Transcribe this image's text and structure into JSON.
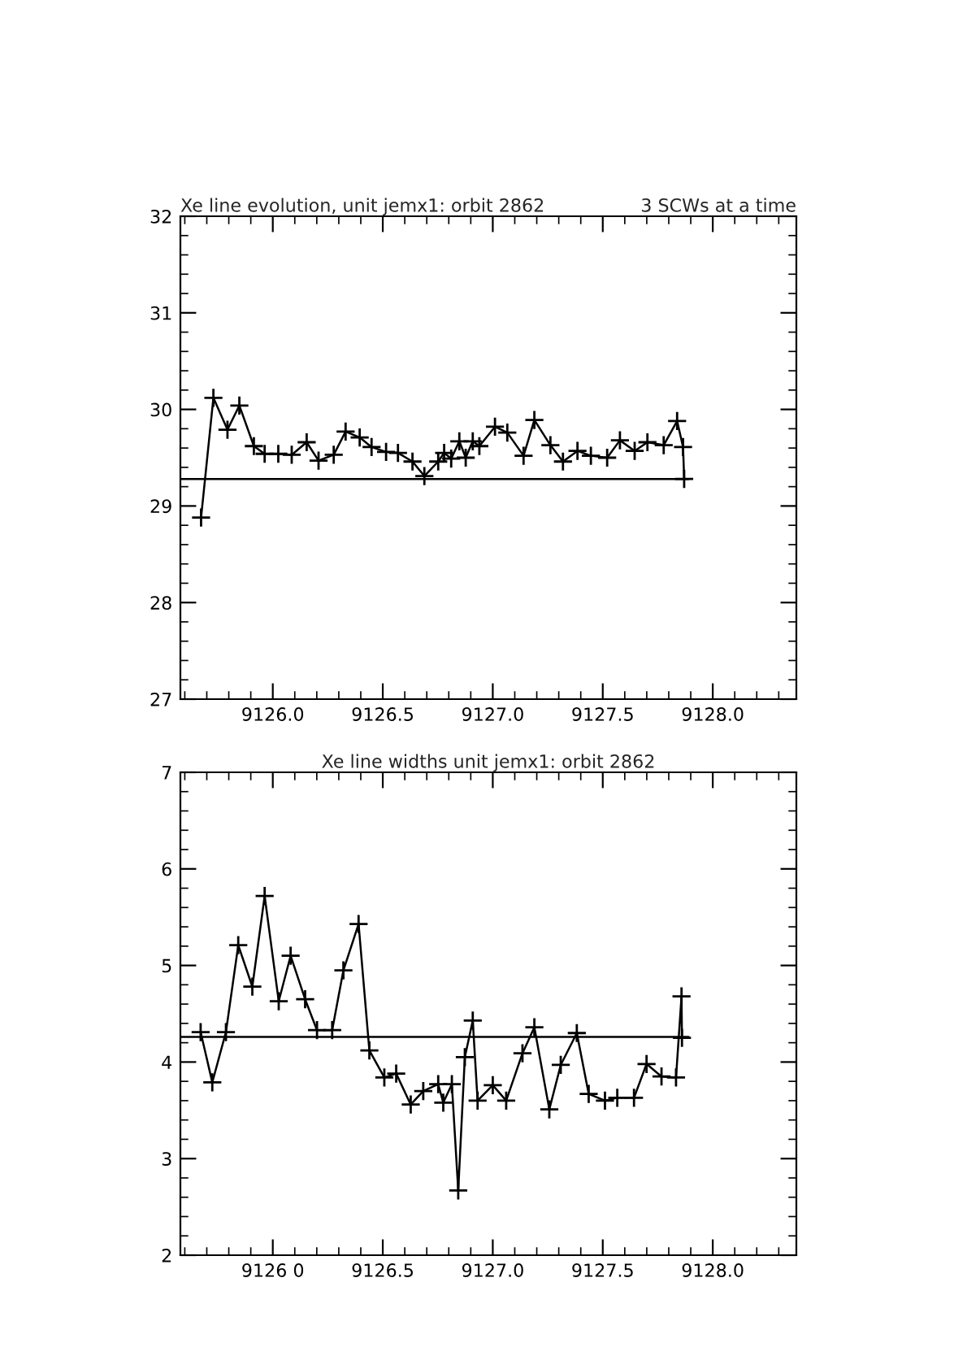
{
  "chart_data": [
    {
      "type": "line",
      "title": "Xe line evolution, unit jemx1: orbit 2862",
      "annotations": [
        "3 SCWs at a time"
      ],
      "xlim": [
        9125.58,
        9128.38
      ],
      "xticks": [
        {
          "value": 9126.0,
          "label": "9126.0"
        },
        {
          "value": 9126.5,
          "label": "9126.5"
        },
        {
          "value": 9127.0,
          "label": "9127.0"
        },
        {
          "value": 9127.5,
          "label": "9127.5"
        },
        {
          "value": 9128.0,
          "label": "9128.0"
        }
      ],
      "ylim": [
        27,
        32
      ],
      "yticks": [
        27,
        28,
        29,
        30,
        31,
        32
      ],
      "grid": false,
      "legend": false,
      "series": [
        {
          "color": "#000000",
          "marker": "cross",
          "x": [
            9125.674,
            9125.73,
            9125.794,
            9125.848,
            9125.914,
            9125.963,
            9126.025,
            9126.086,
            9126.154,
            9126.208,
            9126.277,
            9126.331,
            9126.395,
            9126.449,
            9126.515,
            9126.569,
            9126.635,
            9126.689,
            9126.752,
            9126.779,
            9126.811,
            9126.848,
            9126.877,
            9126.909,
            9126.939,
            9127.01,
            9127.066,
            9127.14,
            9127.189,
            9127.262,
            9127.319,
            9127.385,
            9127.446,
            9127.52,
            9127.578,
            9127.645,
            9127.703,
            9127.777,
            9127.838,
            9127.865,
            9127.87
          ],
          "values": [
            28.88,
            30.12,
            29.79,
            30.04,
            29.62,
            29.54,
            29.54,
            29.53,
            29.66,
            29.47,
            29.53,
            29.77,
            29.71,
            29.61,
            29.56,
            29.55,
            29.46,
            29.31,
            29.46,
            29.55,
            29.49,
            29.67,
            29.5,
            29.67,
            29.62,
            29.82,
            29.76,
            29.52,
            29.89,
            29.63,
            29.46,
            29.57,
            29.52,
            29.5,
            29.68,
            29.57,
            29.66,
            29.63,
            29.88,
            29.61,
            29.28
          ]
        },
        {
          "color": "#000000",
          "marker": "none",
          "x": [
            9125.58,
            9127.89
          ],
          "values": [
            29.28,
            29.28
          ]
        }
      ]
    },
    {
      "type": "line",
      "title": "Xe line widths unit jemx1: orbit 2862",
      "xlim": [
        9125.58,
        9128.38
      ],
      "xticks": [
        {
          "value": 9126.0,
          "label": "9126 0"
        },
        {
          "value": 9126.5,
          "label": "9126.5"
        },
        {
          "value": 9127.0,
          "label": "9127.0"
        },
        {
          "value": 9127.5,
          "label": "9127.5"
        },
        {
          "value": 9128.0,
          "label": "9128.0"
        }
      ],
      "ylim": [
        2,
        7
      ],
      "yticks": [
        2,
        3,
        4,
        5,
        6,
        7
      ],
      "grid": false,
      "legend": false,
      "series": [
        {
          "color": "#000000",
          "marker": "cross",
          "x": [
            9125.672,
            9125.725,
            9125.787,
            9125.843,
            9125.907,
            9125.963,
            9126.027,
            9126.081,
            9126.147,
            9126.201,
            9126.27,
            9126.321,
            9126.39,
            9126.439,
            9126.507,
            9126.561,
            9126.627,
            9126.684,
            9126.752,
            9126.775,
            9126.814,
            9126.843,
            9126.873,
            9126.909,
            9126.931,
            9127.0,
            9127.061,
            9127.135,
            9127.189,
            9127.257,
            9127.309,
            9127.382,
            9127.436,
            9127.51,
            9127.566,
            9127.642,
            9127.699,
            9127.767,
            9127.833,
            9127.858,
            9127.86
          ],
          "values": [
            4.31,
            3.79,
            4.31,
            5.21,
            4.78,
            5.72,
            4.63,
            5.1,
            4.65,
            4.33,
            4.33,
            4.95,
            5.43,
            4.12,
            3.84,
            3.88,
            3.56,
            3.7,
            3.77,
            3.58,
            3.77,
            2.67,
            4.05,
            4.43,
            3.6,
            3.76,
            3.6,
            4.09,
            4.36,
            3.51,
            3.97,
            4.3,
            3.67,
            3.6,
            3.63,
            3.63,
            3.98,
            3.85,
            3.84,
            4.68,
            4.25
          ]
        },
        {
          "color": "#000000",
          "marker": "none",
          "x": [
            9125.58,
            9127.89
          ],
          "values": [
            4.26,
            4.26
          ]
        }
      ]
    }
  ]
}
